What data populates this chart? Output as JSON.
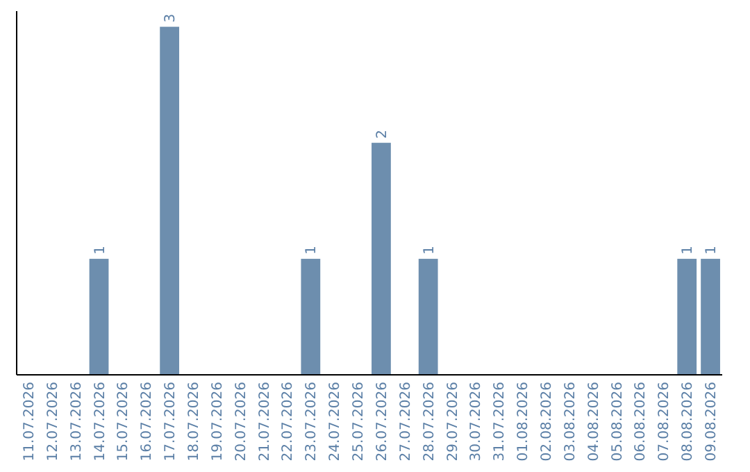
{
  "chart_data": {
    "type": "bar",
    "categories": [
      "11.07.2026",
      "12.07.2026",
      "13.07.2026",
      "14.07.2026",
      "15.07.2026",
      "16.07.2026",
      "17.07.2026",
      "18.07.2026",
      "19.07.2026",
      "20.07.2026",
      "21.07.2026",
      "22.07.2026",
      "23.07.2026",
      "24.07.2026",
      "25.07.2026",
      "26.07.2026",
      "27.07.2026",
      "28.07.2026",
      "29.07.2026",
      "30.07.2026",
      "31.07.2026",
      "01.08.2026",
      "02.08.2026",
      "03.08.2026",
      "04.08.2026",
      "05.08.2026",
      "06.08.2026",
      "07.08.2026",
      "08.08.2026",
      "09.08.2026"
    ],
    "values": [
      0,
      0,
      0,
      1,
      0,
      0,
      3,
      0,
      0,
      0,
      0,
      0,
      1,
      0,
      0,
      2,
      0,
      1,
      0,
      0,
      0,
      0,
      0,
      0,
      0,
      0,
      0,
      0,
      1,
      1
    ],
    "value_labels": [
      null,
      null,
      null,
      "1",
      null,
      null,
      "3",
      null,
      null,
      null,
      null,
      null,
      "1",
      null,
      null,
      "2",
      null,
      "1",
      null,
      null,
      null,
      null,
      null,
      null,
      null,
      null,
      null,
      null,
      "1",
      "1"
    ],
    "color": "#6d8eae",
    "tick_labels": "x"
  }
}
